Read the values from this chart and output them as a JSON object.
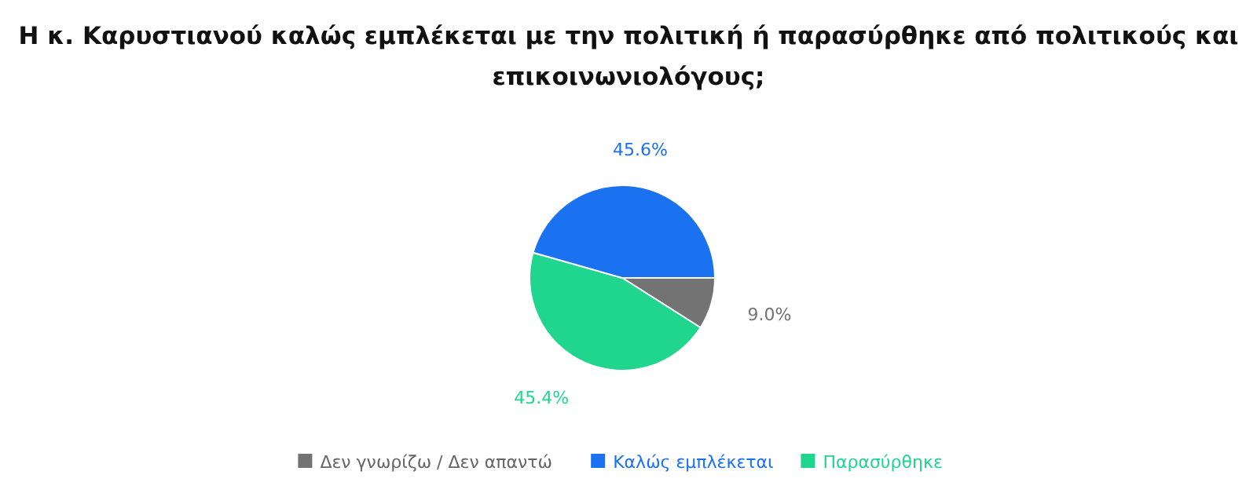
{
  "chart_data": {
    "type": "pie",
    "title": "Η κ. Καρυστιανού καλώς εμπλέκεται με την πολιτική ή παρασύρθηκε από πολιτικούς και επικοινωνιολόγους;",
    "categories": [
      "Δεν γνωρίζω / Δεν απαντώ",
      "Καλώς εμπλέκεται",
      "Παρασύρθηκε"
    ],
    "values": [
      9.0,
      45.6,
      45.4
    ],
    "colors": [
      "#737373",
      "#1a72f0",
      "#20d68f"
    ],
    "value_labels": [
      "9.0%",
      "45.6%",
      "45.4%"
    ],
    "legend": "bottom"
  }
}
